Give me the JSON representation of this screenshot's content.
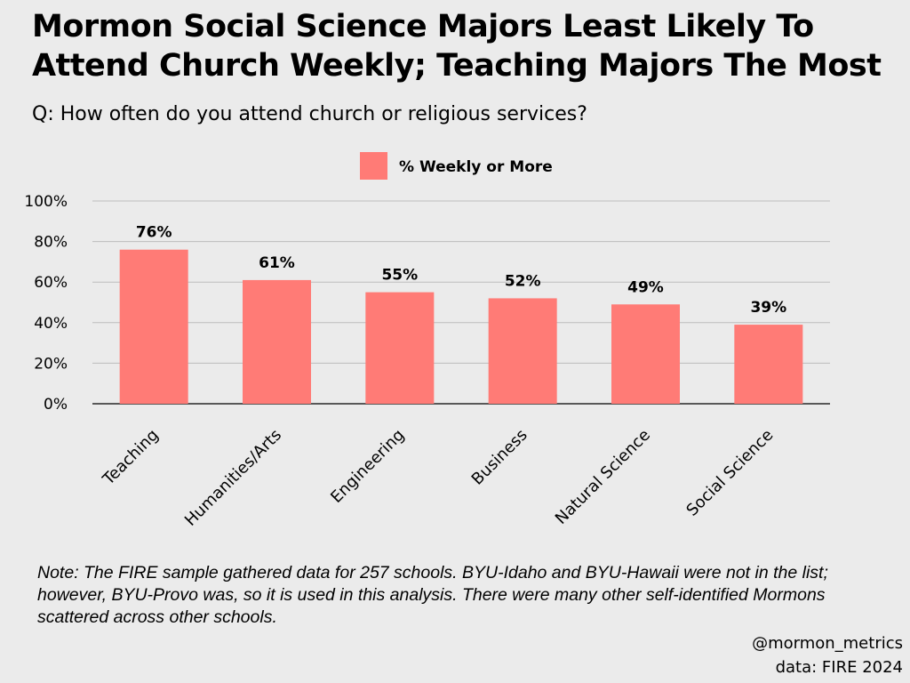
{
  "title_line1": "Mormon Social Science Majors Least Likely To",
  "title_line2": "Attend Church Weekly; Teaching Majors The Most",
  "subtitle": "Q: How often do you attend church or religious services?",
  "note": "Note: The FIRE sample gathered data for 257 schools. BYU-Idaho and BYU-Hawaii were not in the list; however, BYU-Provo was, so it is used in this analysis. There were many other self-identified Mormons scattered across other schools.",
  "credit_handle": "@mormon_metrics",
  "credit_source": "data: FIRE 2024",
  "chart_data": {
    "type": "bar",
    "title": "Mormon Social Science Majors Least Likely To Attend Church Weekly; Teaching Majors The Most",
    "categories": [
      "Teaching",
      "Humanities/Arts",
      "Engineering",
      "Business",
      "Natural Science",
      "Social Science"
    ],
    "series": [
      {
        "name": "% Weekly or More",
        "values": [
          76,
          61,
          55,
          52,
          49,
          39
        ],
        "color": "#ff7b76"
      }
    ],
    "data_labels": [
      "76%",
      "61%",
      "55%",
      "52%",
      "49%",
      "39%"
    ],
    "yticks": [
      0,
      20,
      40,
      60,
      80,
      100
    ],
    "ytick_labels": [
      "0%",
      "20%",
      "40%",
      "60%",
      "80%",
      "100%"
    ],
    "ylim": [
      0,
      100
    ],
    "xlabel": "",
    "ylabel": "",
    "grid": true,
    "legend": "top-center"
  }
}
